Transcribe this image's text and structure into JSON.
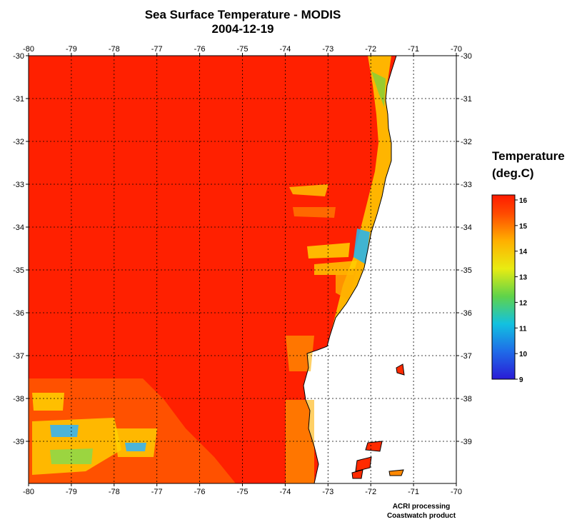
{
  "title": "Sea Surface Temperature - MODIS",
  "date": "2004-12-19",
  "legend": {
    "title_line1": "Temperature",
    "title_line2": "(deg.C)",
    "min": 9,
    "max": 16,
    "ticks": [
      "16",
      "15",
      "14",
      "13",
      "12",
      "11",
      "10",
      "9"
    ]
  },
  "map": {
    "lon_ticks": [
      "-80",
      "-79",
      "-78",
      "-77",
      "-76",
      "-75",
      "-74",
      "-73",
      "-72",
      "-71",
      "-70"
    ],
    "lat_ticks": [
      "-30",
      "-31",
      "-32",
      "-33",
      "-34",
      "-35",
      "-36",
      "-37",
      "-38",
      "-39"
    ],
    "lon_range": [
      -80,
      -70
    ],
    "lat_range": [
      -30,
      -40
    ],
    "grid": true
  },
  "footer": {
    "line1": "ACRI processing",
    "line2": "Coastwatch product"
  },
  "colors": {
    "warm": "#ff2200",
    "mid": "#ffdd00",
    "cool": "#00aaff",
    "cold": "#0000cc",
    "land": "#ffffff"
  }
}
